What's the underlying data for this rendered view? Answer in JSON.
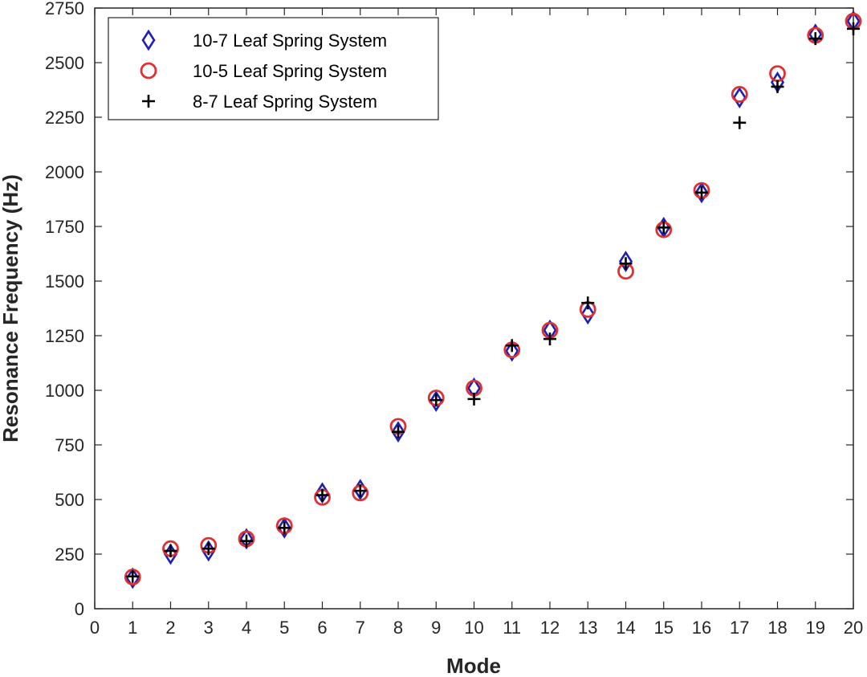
{
  "chart_data": {
    "type": "scatter",
    "title": "",
    "xlabel": "Mode",
    "ylabel": "Resonance Frequency (Hz)",
    "xlim": [
      0,
      20
    ],
    "ylim": [
      0,
      2750
    ],
    "xticks": [
      0,
      1,
      2,
      3,
      4,
      5,
      6,
      7,
      8,
      9,
      10,
      11,
      12,
      13,
      14,
      15,
      16,
      17,
      18,
      19,
      20
    ],
    "yticks": [
      0,
      250,
      500,
      750,
      1000,
      1250,
      1500,
      1750,
      2000,
      2250,
      2500,
      2750
    ],
    "grid": false,
    "legend_position": "top-left",
    "x": [
      1,
      2,
      3,
      4,
      5,
      6,
      7,
      8,
      9,
      10,
      11,
      12,
      13,
      14,
      15,
      16,
      17,
      18,
      19,
      20
    ],
    "series": [
      {
        "name": "10-7 Leaf Spring System",
        "marker": "diamond",
        "color": "#1f1fb4",
        "values": [
          140,
          250,
          265,
          320,
          370,
          530,
          545,
          810,
          950,
          1010,
          1180,
          1275,
          1350,
          1590,
          1745,
          1905,
          2340,
          2410,
          2630,
          2690
        ]
      },
      {
        "name": "10-5 Leaf Spring System",
        "marker": "circle",
        "color": "#e03030",
        "values": [
          145,
          275,
          290,
          320,
          380,
          510,
          530,
          835,
          965,
          1010,
          1185,
          1275,
          1370,
          1545,
          1735,
          1915,
          2355,
          2450,
          2625,
          2690
        ]
      },
      {
        "name": "8-7 Leaf Spring System",
        "marker": "plus",
        "color": "#000000",
        "values": [
          148,
          265,
          275,
          310,
          370,
          520,
          540,
          810,
          955,
          960,
          1205,
          1235,
          1400,
          1580,
          1745,
          1905,
          2225,
          2390,
          2610,
          2655
        ]
      }
    ]
  }
}
